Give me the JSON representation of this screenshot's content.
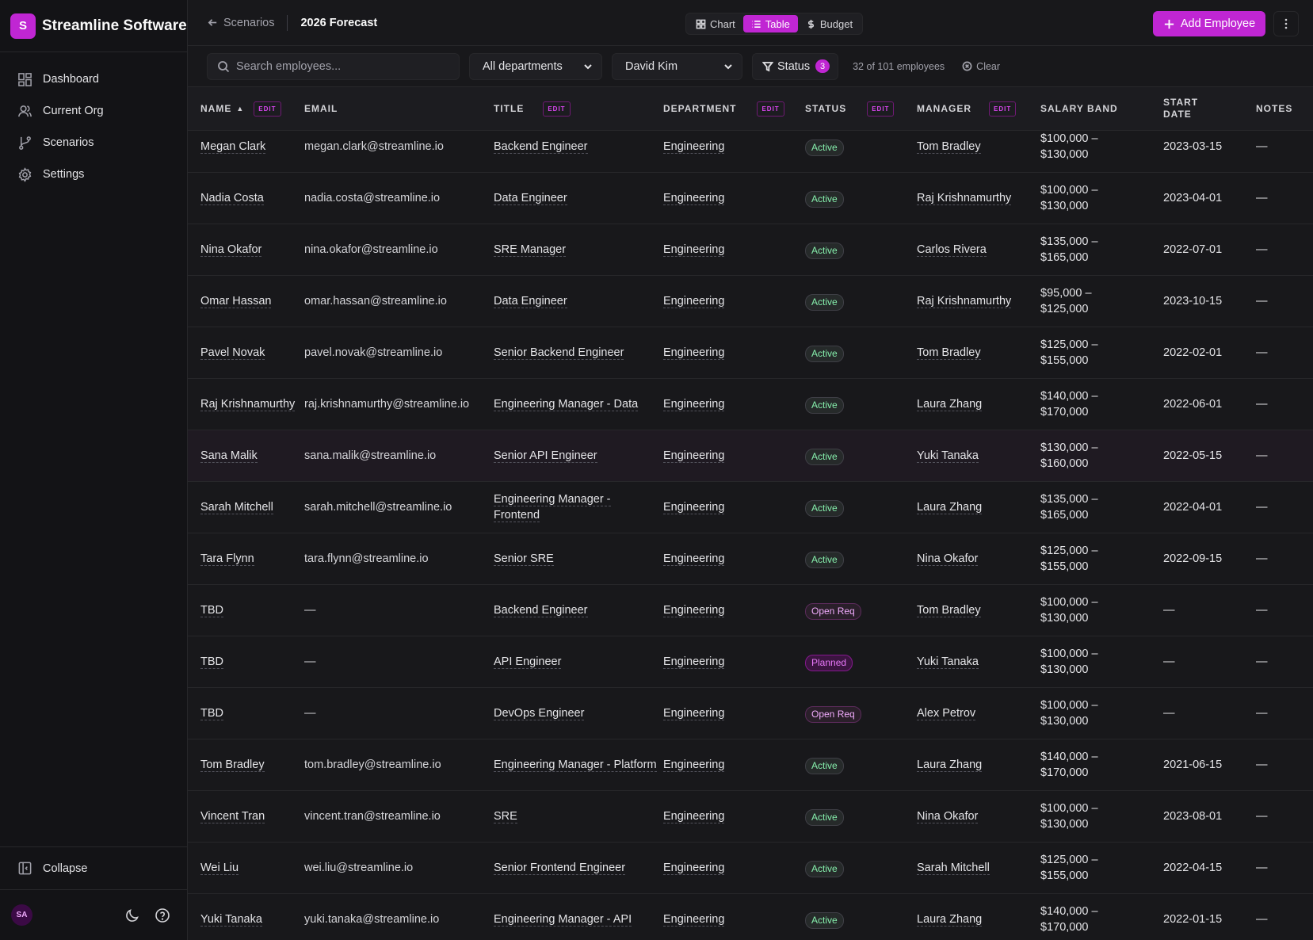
{
  "app": {
    "logo_letter": "S",
    "name": "Streamline Software",
    "accent": "#c026d3"
  },
  "sidebar": {
    "items": [
      {
        "label": "Dashboard",
        "icon": "dashboard-icon"
      },
      {
        "label": "Current Org",
        "icon": "users-icon"
      },
      {
        "label": "Scenarios",
        "icon": "git-branch-icon"
      },
      {
        "label": "Settings",
        "icon": "gear-icon"
      }
    ],
    "collapse_label": "Collapse",
    "user_initials": "SA"
  },
  "topbar": {
    "back_label": "Scenarios",
    "scenario_name": "2026 Forecast",
    "views": [
      "Chart",
      "Table",
      "Budget"
    ],
    "active_view": "Table",
    "add_button": "Add Employee"
  },
  "filters": {
    "search_placeholder": "Search employees...",
    "department": "All departments",
    "manager": "David Kim",
    "status_label": "Status",
    "status_count": "3",
    "count_text": "32 of 101 employees",
    "clear_label": "Clear"
  },
  "table": {
    "columns": {
      "name": "NAME",
      "email": "EMAIL",
      "title": "TITLE",
      "department": "DEPARTMENT",
      "status": "STATUS",
      "manager": "MANAGER",
      "salary": "SALARY BAND",
      "start_line1": "START",
      "start_line2": "DATE",
      "notes": "NOTES",
      "edit_tag": "EDIT"
    },
    "rows": [
      {
        "name": "Megan Clark",
        "email": "megan.clark@streamline.io",
        "title": "Backend Engineer",
        "dept": "Engineering",
        "status": "Active",
        "manager": "Tom Bradley",
        "sal1": "$100,000 –",
        "sal2": "$130,000",
        "start": "2023-03-15",
        "notes": "—"
      },
      {
        "name": "Nadia Costa",
        "email": "nadia.costa@streamline.io",
        "title": "Data Engineer",
        "dept": "Engineering",
        "status": "Active",
        "manager": "Raj Krishnamurthy",
        "sal1": "$100,000 –",
        "sal2": "$130,000",
        "start": "2023-04-01",
        "notes": "—"
      },
      {
        "name": "Nina Okafor",
        "email": "nina.okafor@streamline.io",
        "title": "SRE Manager",
        "dept": "Engineering",
        "status": "Active",
        "manager": "Carlos Rivera",
        "sal1": "$135,000 –",
        "sal2": "$165,000",
        "start": "2022-07-01",
        "notes": "—"
      },
      {
        "name": "Omar Hassan",
        "email": "omar.hassan@streamline.io",
        "title": "Data Engineer",
        "dept": "Engineering",
        "status": "Active",
        "manager": "Raj Krishnamurthy",
        "sal1": "$95,000 –",
        "sal2": "$125,000",
        "start": "2023-10-15",
        "notes": "—"
      },
      {
        "name": "Pavel Novak",
        "email": "pavel.novak@streamline.io",
        "title": "Senior Backend Engineer",
        "dept": "Engineering",
        "status": "Active",
        "manager": "Tom Bradley",
        "sal1": "$125,000 –",
        "sal2": "$155,000",
        "start": "2022-02-01",
        "notes": "—"
      },
      {
        "name": "Raj Krishnamurthy",
        "email": "raj.krishnamurthy@streamline.io",
        "title": "Engineering Manager - Data",
        "dept": "Engineering",
        "status": "Active",
        "manager": "Laura Zhang",
        "sal1": "$140,000 –",
        "sal2": "$170,000",
        "start": "2022-06-01",
        "notes": "—"
      },
      {
        "name": "Sana Malik",
        "email": "sana.malik@streamline.io",
        "title": "Senior API Engineer",
        "dept": "Engineering",
        "status": "Active",
        "manager": "Yuki Tanaka",
        "sal1": "$130,000 –",
        "sal2": "$160,000",
        "start": "2022-05-15",
        "notes": "—"
      },
      {
        "name": "Sarah Mitchell",
        "email": "sarah.mitchell@streamline.io",
        "title": "Engineering Manager - Frontend",
        "dept": "Engineering",
        "status": "Active",
        "manager": "Laura Zhang",
        "sal1": "$135,000 –",
        "sal2": "$165,000",
        "start": "2022-04-01",
        "notes": "—"
      },
      {
        "name": "Tara Flynn",
        "email": "tara.flynn@streamline.io",
        "title": "Senior SRE",
        "dept": "Engineering",
        "status": "Active",
        "manager": "Nina Okafor",
        "sal1": "$125,000 –",
        "sal2": "$155,000",
        "start": "2022-09-15",
        "notes": "—"
      },
      {
        "name": "TBD",
        "email": "—",
        "title": "Backend Engineer",
        "dept": "Engineering",
        "status": "Open Req",
        "manager": "Tom Bradley",
        "sal1": "$100,000 –",
        "sal2": "$130,000",
        "start": "—",
        "notes": "—"
      },
      {
        "name": "TBD",
        "email": "—",
        "title": "API Engineer",
        "dept": "Engineering",
        "status": "Planned",
        "manager": "Yuki Tanaka",
        "sal1": "$100,000 –",
        "sal2": "$130,000",
        "start": "—",
        "notes": "—"
      },
      {
        "name": "TBD",
        "email": "—",
        "title": "DevOps Engineer",
        "dept": "Engineering",
        "status": "Open Req",
        "manager": "Alex Petrov",
        "sal1": "$100,000 –",
        "sal2": "$130,000",
        "start": "—",
        "notes": "—"
      },
      {
        "name": "Tom Bradley",
        "email": "tom.bradley@streamline.io",
        "title": "Engineering Manager - Platform",
        "dept": "Engineering",
        "status": "Active",
        "manager": "Laura Zhang",
        "sal1": "$140,000 –",
        "sal2": "$170,000",
        "start": "2021-06-15",
        "notes": "—"
      },
      {
        "name": "Vincent Tran",
        "email": "vincent.tran@streamline.io",
        "title": "SRE",
        "dept": "Engineering",
        "status": "Active",
        "manager": "Nina Okafor",
        "sal1": "$100,000 –",
        "sal2": "$130,000",
        "start": "2023-08-01",
        "notes": "—"
      },
      {
        "name": "Wei Liu",
        "email": "wei.liu@streamline.io",
        "title": "Senior Frontend Engineer",
        "dept": "Engineering",
        "status": "Active",
        "manager": "Sarah Mitchell",
        "sal1": "$125,000 –",
        "sal2": "$155,000",
        "start": "2022-04-15",
        "notes": "—"
      },
      {
        "name": "Yuki Tanaka",
        "email": "yuki.tanaka@streamline.io",
        "title": "Engineering Manager - API",
        "dept": "Engineering",
        "status": "Active",
        "manager": "Laura Zhang",
        "sal1": "$140,000 –",
        "sal2": "$170,000",
        "start": "2022-01-15",
        "notes": "—"
      }
    ],
    "highlighted_row": 6
  }
}
